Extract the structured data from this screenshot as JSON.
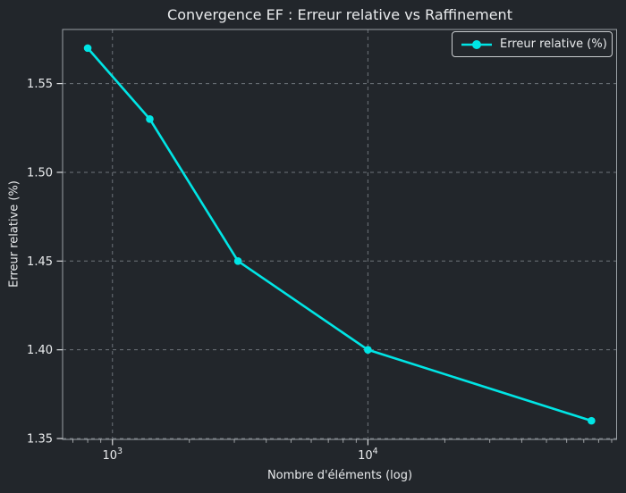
{
  "chart_data": {
    "type": "line",
    "title": "Convergence EF : Erreur relative vs Raffinement",
    "xlabel": "Nombre d'éléments (log)",
    "ylabel": "Erreur relative (%)",
    "x_scale": "log",
    "x": [
      800,
      1400,
      3100,
      10000,
      75000
    ],
    "series": [
      {
        "name": "Erreur relative (%)",
        "color": "#00e5e5",
        "values": [
          1.57,
          1.53,
          1.45,
          1.4,
          1.36
        ]
      }
    ],
    "xlim": [
      638,
      94100
    ],
    "ylim": [
      1.3495,
      1.5805
    ],
    "yticks": [
      1.35,
      1.4,
      1.45,
      1.5,
      1.55
    ],
    "xticks": [
      {
        "value": 1000,
        "label_base": "10",
        "label_exp": "3"
      },
      {
        "value": 10000,
        "label_base": "10",
        "label_exp": "4"
      }
    ],
    "minor_xtick_multipliers": [
      2,
      3,
      4,
      5,
      6,
      7,
      8,
      9
    ],
    "grid": true,
    "grid_style": "dashed",
    "legend": {
      "position": "upper-right"
    }
  },
  "colors": {
    "background": "#22262b",
    "text": "#e9ebed",
    "grid": "#6e747b",
    "spine": "#9aa0a5",
    "tick": "#d8dadc",
    "accent": "#00e5e5",
    "legend_border": "#c9cccf",
    "legend_bg": "#23272c"
  }
}
